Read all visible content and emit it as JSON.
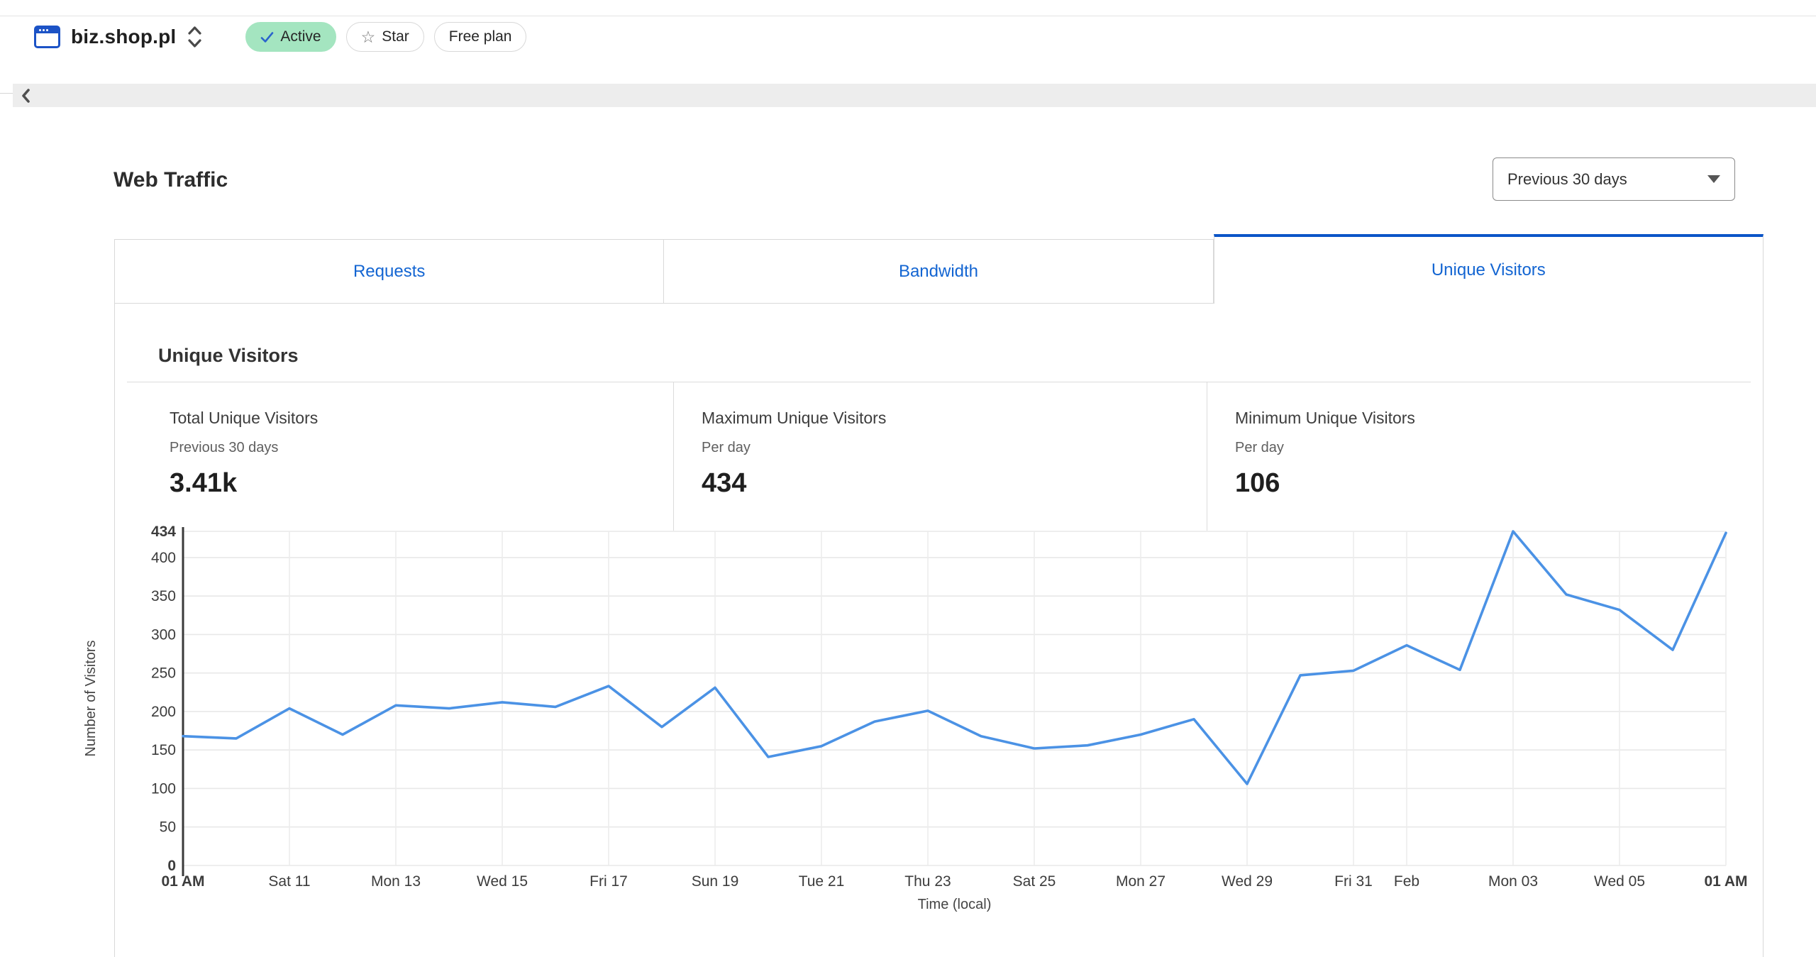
{
  "header": {
    "site_name": "biz.shop.pl",
    "badges": {
      "active": "Active",
      "star": "Star",
      "plan": "Free plan"
    }
  },
  "page": {
    "title": "Web Traffic",
    "range_selector": "Previous 30 days"
  },
  "tabs": [
    {
      "label": "Requests"
    },
    {
      "label": "Bandwidth"
    },
    {
      "label": "Unique Visitors"
    }
  ],
  "panel": {
    "title": "Unique Visitors"
  },
  "stats": [
    {
      "label": "Total Unique Visitors",
      "period": "Previous 30 days",
      "value": "3.41k"
    },
    {
      "label": "Maximum Unique Visitors",
      "period": "Per day",
      "value": "434"
    },
    {
      "label": "Minimum Unique Visitors",
      "period": "Per day",
      "value": "106"
    }
  ],
  "chart_data": {
    "type": "line",
    "title": "Unique Visitors",
    "xlabel": "Time (local)",
    "ylabel": "Number of Visitors",
    "ylim": [
      0,
      434
    ],
    "grid": true,
    "legend": "none",
    "line_color": "#4b92e5",
    "series": [
      {
        "name": "Unique Visitors",
        "values": [
          168,
          165,
          204,
          170,
          208,
          204,
          212,
          206,
          233,
          180,
          231,
          141,
          155,
          187,
          201,
          168,
          152,
          156,
          170,
          190,
          106,
          247,
          253,
          286,
          254,
          434,
          352,
          332,
          280,
          432
        ]
      }
    ],
    "x_ticks": [
      {
        "label": "01 AM",
        "index": 0,
        "bold": true
      },
      {
        "label": "Sat 11",
        "index": 2
      },
      {
        "label": "Mon 13",
        "index": 4
      },
      {
        "label": "Wed 15",
        "index": 6
      },
      {
        "label": "Fri 17",
        "index": 8
      },
      {
        "label": "Sun 19",
        "index": 10
      },
      {
        "label": "Tue 21",
        "index": 12
      },
      {
        "label": "Thu 23",
        "index": 14
      },
      {
        "label": "Sat 25",
        "index": 16
      },
      {
        "label": "Mon 27",
        "index": 18
      },
      {
        "label": "Wed 29",
        "index": 20
      },
      {
        "label": "Fri 31",
        "index": 22
      },
      {
        "label": "Feb",
        "index": 23
      },
      {
        "label": "Mon 03",
        "index": 25
      },
      {
        "label": "Wed 05",
        "index": 27
      },
      {
        "label": "01 AM",
        "index": 29,
        "bold": true
      }
    ],
    "y_ticks": [
      {
        "value": 0,
        "bold": true
      },
      {
        "value": 50
      },
      {
        "value": 100
      },
      {
        "value": 150
      },
      {
        "value": 200
      },
      {
        "value": 250
      },
      {
        "value": 300
      },
      {
        "value": 350
      },
      {
        "value": 400
      },
      {
        "value": 434,
        "bold": true
      }
    ]
  }
}
